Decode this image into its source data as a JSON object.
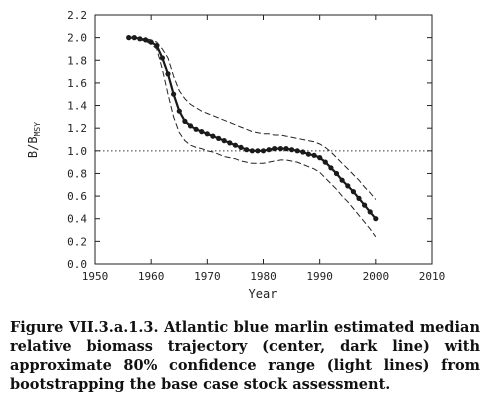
{
  "chart_data": {
    "type": "line",
    "xlabel": "Year",
    "ylabel": "B/B",
    "ylabel_sub": "MSY",
    "xlim": [
      1950,
      2010
    ],
    "ylim": [
      0.0,
      2.2
    ],
    "xticks": [
      "1950",
      "1960",
      "1970",
      "1980",
      "1990",
      "2000",
      "2010"
    ],
    "yticks": [
      "0.0",
      "0.2",
      "0.4",
      "0.6",
      "0.8",
      "1.0",
      "1.2",
      "1.4",
      "1.6",
      "1.8",
      "2.0",
      "2.2"
    ],
    "grid": false,
    "reference_line": {
      "y": 1.0,
      "style": "dotted"
    },
    "x": [
      1956,
      1957,
      1958,
      1959,
      1960,
      1961,
      1962,
      1963,
      1964,
      1965,
      1966,
      1967,
      1968,
      1969,
      1970,
      1971,
      1972,
      1973,
      1974,
      1975,
      1976,
      1977,
      1978,
      1979,
      1980,
      1981,
      1982,
      1983,
      1984,
      1985,
      1986,
      1987,
      1988,
      1989,
      1990,
      1991,
      1992,
      1993,
      1994,
      1995,
      1996,
      1997,
      1998,
      1999,
      2000
    ],
    "series": [
      {
        "role": "median",
        "style": "solid-markers",
        "values": [
          2.0,
          2.0,
          1.99,
          1.98,
          1.96,
          1.93,
          1.82,
          1.68,
          1.5,
          1.35,
          1.26,
          1.22,
          1.19,
          1.17,
          1.15,
          1.13,
          1.11,
          1.09,
          1.07,
          1.05,
          1.03,
          1.01,
          1.0,
          1.0,
          1.0,
          1.01,
          1.02,
          1.02,
          1.02,
          1.01,
          1.0,
          0.99,
          0.97,
          0.96,
          0.94,
          0.9,
          0.85,
          0.8,
          0.74,
          0.69,
          0.64,
          0.58,
          0.52,
          0.46,
          0.4
        ]
      },
      {
        "role": "upper",
        "style": "dashed",
        "values": [
          2.0,
          2.0,
          1.99,
          1.99,
          1.98,
          1.96,
          1.9,
          1.82,
          1.66,
          1.53,
          1.46,
          1.41,
          1.38,
          1.35,
          1.33,
          1.31,
          1.29,
          1.27,
          1.25,
          1.23,
          1.21,
          1.19,
          1.17,
          1.16,
          1.15,
          1.15,
          1.14,
          1.14,
          1.13,
          1.12,
          1.11,
          1.1,
          1.09,
          1.08,
          1.06,
          1.03,
          0.99,
          0.94,
          0.89,
          0.84,
          0.79,
          0.74,
          0.68,
          0.63,
          0.57
        ]
      },
      {
        "role": "lower",
        "style": "dashed",
        "values": [
          2.0,
          2.0,
          1.98,
          1.97,
          1.94,
          1.9,
          1.72,
          1.5,
          1.3,
          1.16,
          1.09,
          1.05,
          1.03,
          1.02,
          1.0,
          0.99,
          0.97,
          0.95,
          0.94,
          0.93,
          0.91,
          0.9,
          0.89,
          0.89,
          0.89,
          0.9,
          0.91,
          0.92,
          0.92,
          0.91,
          0.9,
          0.88,
          0.86,
          0.84,
          0.81,
          0.76,
          0.71,
          0.66,
          0.6,
          0.55,
          0.49,
          0.43,
          0.37,
          0.31,
          0.24
        ]
      }
    ]
  },
  "caption": "Figure VII.3.a.1.3. Atlantic blue marlin estimated median relative biomass trajectory (center, dark line) with approximate 80% confidence range (light lines) from bootstrapping the base case stock assessment.",
  "colors": {
    "median": "#1a1a1a",
    "bounds": "#222222",
    "reference": "#333333"
  }
}
